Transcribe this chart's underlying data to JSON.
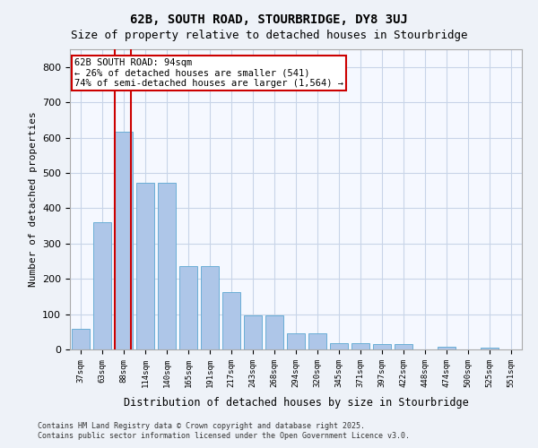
{
  "title": "62B, SOUTH ROAD, STOURBRIDGE, DY8 3UJ",
  "subtitle": "Size of property relative to detached houses in Stourbridge",
  "xlabel": "Distribution of detached houses by size in Stourbridge",
  "ylabel": "Number of detached properties",
  "categories": [
    "37sqm",
    "63sqm",
    "88sqm",
    "114sqm",
    "140sqm",
    "165sqm",
    "191sqm",
    "217sqm",
    "243sqm",
    "268sqm",
    "294sqm",
    "320sqm",
    "345sqm",
    "371sqm",
    "397sqm",
    "422sqm",
    "448sqm",
    "474sqm",
    "500sqm",
    "525sqm",
    "551sqm"
  ],
  "values": [
    58,
    360,
    617,
    472,
    472,
    237,
    237,
    162,
    97,
    97,
    45,
    45,
    18,
    18,
    14,
    14,
    0,
    8,
    0,
    5,
    0
  ],
  "bar_color": "#aec6e8",
  "bar_edgecolor": "#6aaed6",
  "redline_index": 2,
  "redline_label": "62B SOUTH ROAD: 94sqm",
  "annotation_line2": "← 26% of detached houses are smaller (541)",
  "annotation_line3": "74% of semi-detached houses are larger (1,564) →",
  "annotation_box_color": "#cc0000",
  "ylim": [
    0,
    850
  ],
  "yticks": [
    0,
    100,
    200,
    300,
    400,
    500,
    600,
    700,
    800
  ],
  "footer_line1": "Contains HM Land Registry data © Crown copyright and database right 2025.",
  "footer_line2": "Contains public sector information licensed under the Open Government Licence v3.0.",
  "bg_color": "#eef2f8",
  "plot_bg_color": "#f5f8ff",
  "grid_color": "#c8d4e8"
}
